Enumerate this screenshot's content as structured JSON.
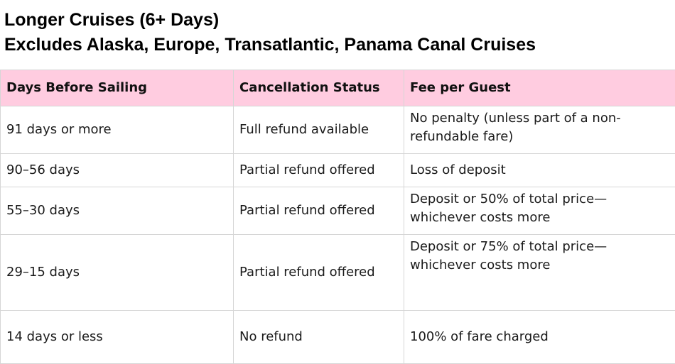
{
  "title": {
    "line1": "Longer Cruises (6+ Days)",
    "line2": "Excludes Alaska, Europe, Transatlantic, Panama Canal Cruises"
  },
  "table": {
    "headers": [
      "Days Before Sailing",
      "Cancellation Status",
      "Fee per Guest"
    ],
    "header_color": "#ffcce0",
    "rows": [
      [
        "91 days or more",
        "Full refund available",
        "No penalty (unless part of a non-refundable fare)"
      ],
      [
        "90–56 days",
        "Partial refund offered",
        "Loss of deposit"
      ],
      [
        "55–30 days",
        "Partial refund offered",
        "Deposit or 50% of total price—whichever costs more"
      ],
      [
        "29–15 days",
        "Partial refund offered",
        "Deposit or 75% of total price—whichever costs more"
      ],
      [
        "14 days or less",
        "No refund",
        "100% of fare charged"
      ]
    ]
  }
}
